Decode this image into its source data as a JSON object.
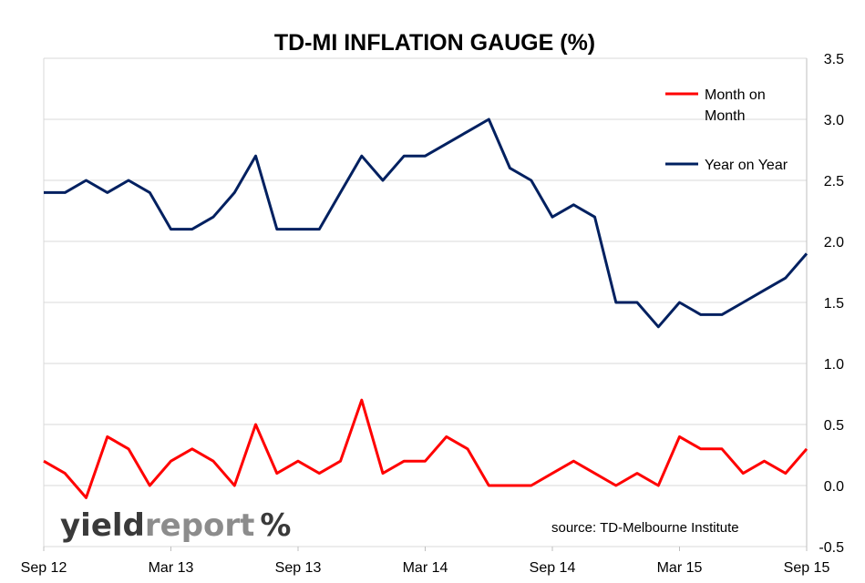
{
  "chart_data": {
    "type": "line",
    "title": "TD-MI INFLATION GAUGE (%)",
    "x": [
      "Sep 12",
      "Oct 12",
      "Nov 12",
      "Dec 12",
      "Jan 13",
      "Feb 13",
      "Mar 13",
      "Apr 13",
      "May 13",
      "Jun 13",
      "Jul 13",
      "Aug 13",
      "Sep 13",
      "Oct 13",
      "Nov 13",
      "Dec 13",
      "Jan 14",
      "Feb 14",
      "Mar 14",
      "Apr 14",
      "May 14",
      "Jun 14",
      "Jul 14",
      "Aug 14",
      "Sep 14",
      "Oct 14",
      "Nov 14",
      "Dec 14",
      "Jan 15",
      "Feb 15",
      "Mar 15",
      "Apr 15",
      "May 15",
      "Jun 15",
      "Jul 15",
      "Aug 15",
      "Sep 15"
    ],
    "x_tick_labels": [
      "Sep 12",
      "Mar 13",
      "Sep 13",
      "Mar 14",
      "Sep 14",
      "Mar 15",
      "Sep 15"
    ],
    "y_ticks": [
      "3.5",
      "3.0",
      "2.5",
      "2.0",
      "1.5",
      "1.0",
      "0.5",
      "0.0",
      "-0.5"
    ],
    "ylim": [
      -0.5,
      3.5
    ],
    "grid": true,
    "legend_position": "top-right",
    "series": [
      {
        "name": "Month on Month",
        "color": "#ff0000",
        "values": [
          0.2,
          0.1,
          -0.1,
          0.4,
          0.3,
          0.0,
          0.2,
          0.3,
          0.2,
          0.0,
          0.5,
          0.1,
          0.2,
          0.1,
          0.2,
          0.7,
          0.1,
          0.2,
          0.2,
          0.4,
          0.3,
          0.0,
          0.0,
          0.0,
          0.1,
          0.2,
          0.1,
          0.0,
          0.1,
          0.0,
          0.4,
          0.3,
          0.3,
          0.1,
          0.2,
          0.1,
          0.3
        ]
      },
      {
        "name": "Year on Year",
        "color": "#002060",
        "values": [
          2.4,
          2.4,
          2.5,
          2.4,
          2.5,
          2.4,
          2.1,
          2.1,
          2.2,
          2.4,
          2.7,
          2.1,
          2.1,
          2.1,
          2.4,
          2.7,
          2.5,
          2.7,
          2.7,
          2.8,
          2.9,
          3.0,
          2.6,
          2.5,
          2.2,
          2.3,
          2.2,
          1.5,
          1.5,
          1.3,
          1.5,
          1.4,
          1.4,
          1.5,
          1.6,
          1.7,
          1.9
        ]
      }
    ],
    "legend": [
      "Month on",
      "Month",
      "Year on Year"
    ],
    "annotation": "source: TD-Melbourne Institute"
  },
  "logo": {
    "part1": "yield",
    "part2": "report",
    "symbol": "%"
  }
}
